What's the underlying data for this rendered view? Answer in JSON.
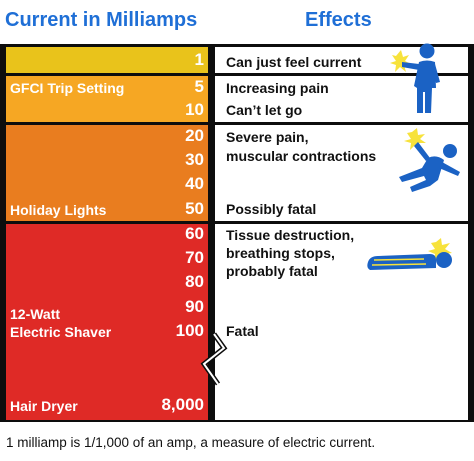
{
  "headers": {
    "current": "Current in Milliamps",
    "effects": "Effects"
  },
  "colors": {
    "yellow": "#e9c31b",
    "light_orange": "#f6a723",
    "orange": "#e97d1f",
    "red": "#df2a26",
    "header_blue": "#1f6fd6",
    "figure_blue": "#1b62c4",
    "spark": "#f7e23b"
  },
  "levels": {
    "l1": "1",
    "l5": "5",
    "l10": "10",
    "l20": "20",
    "l30": "30",
    "l40": "40",
    "l50": "50",
    "l60": "60",
    "l70": "70",
    "l80": "80",
    "l90": "90",
    "l100": "100",
    "l8000": "8,000"
  },
  "devices": {
    "gfci": "GFCI Trip Setting",
    "holiday": "Holiday Lights",
    "shaver_line1": "12-Watt",
    "shaver_line2": "Electric Shaver",
    "hair_dryer": "Hair Dryer"
  },
  "effects": {
    "feel": "Can just feel current",
    "pain": "Increasing pain",
    "let_go": "Can’t let go",
    "severe_line1": "Severe pain,",
    "severe_line2": "muscular contractions",
    "possibly_fatal": "Possibly fatal",
    "tissue_line1": "Tissue destruction,",
    "tissue_line2": "breathing stops,",
    "tissue_line3": "probably fatal",
    "fatal": "Fatal"
  },
  "icons": {
    "standing": "person-touching-current-icon",
    "falling": "person-falling-shock-icon",
    "lying": "person-lying-down-icon"
  },
  "footnote": "1 milliamp is 1/1,000 of an amp, a measure of electric current."
}
